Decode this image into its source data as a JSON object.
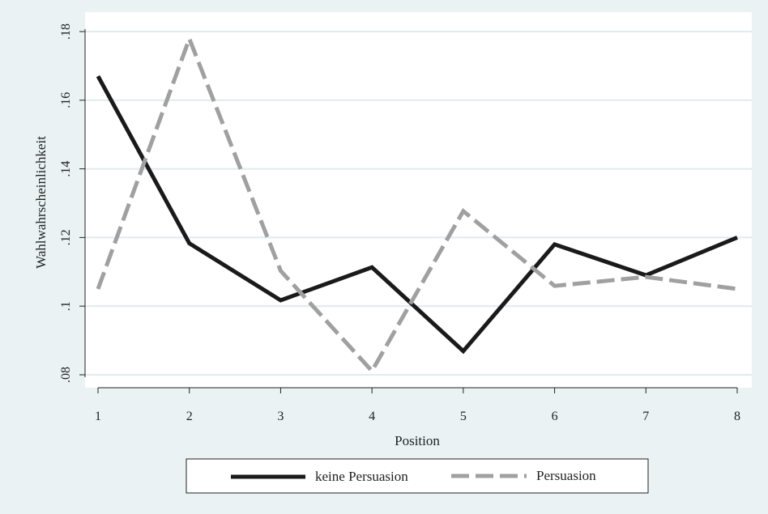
{
  "chart_data": {
    "type": "line",
    "xlabel": "Position",
    "ylabel": "Wahlwahrscheinlichkeit",
    "x": [
      1,
      2,
      3,
      4,
      5,
      6,
      7,
      8
    ],
    "x_ticks": [
      "1",
      "2",
      "3",
      "4",
      "5",
      "6",
      "7",
      "8"
    ],
    "xlim": [
      1,
      8
    ],
    "ylim": [
      0.08,
      0.18
    ],
    "y_ticks": [
      {
        "value": 0.08,
        "label": ".08"
      },
      {
        "value": 0.1,
        "label": ".1"
      },
      {
        "value": 0.12,
        "label": ".12"
      },
      {
        "value": 0.14,
        "label": ".14"
      },
      {
        "value": 0.16,
        "label": ".16"
      },
      {
        "value": 0.18,
        "label": ".18"
      }
    ],
    "grid": true,
    "legend_position": "bottom",
    "series": [
      {
        "name": "keine Persuasion",
        "values": [
          0.167,
          0.1183,
          0.1017,
          0.1113,
          0.0869,
          0.118,
          0.109,
          0.12
        ],
        "color": "#1a1a1a",
        "style": "solid"
      },
      {
        "name": "Persuasion",
        "values": [
          0.105,
          0.1779,
          0.1103,
          0.0811,
          0.1277,
          0.1059,
          0.1085,
          0.105
        ],
        "color": "#a0a0a0",
        "style": "dashed"
      }
    ]
  },
  "colors": {
    "page_background": "#eaf2f3",
    "plot_background": "#ffffff",
    "grid": "#e1ebec",
    "axis": "#222222"
  }
}
